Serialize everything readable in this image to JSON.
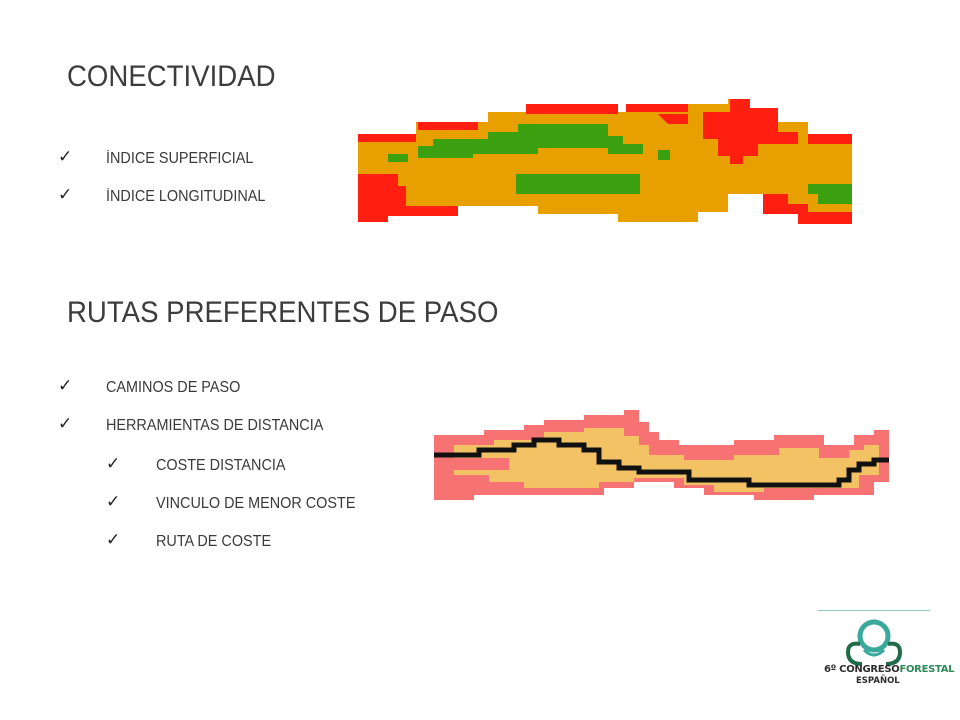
{
  "section1": {
    "title": "CONECTIVIDAD",
    "items": [
      "ÍNDICE SUPERFICIAL",
      "ÍNDICE LONGITUDINAL"
    ]
  },
  "section2": {
    "title": "RUTAS PREFERENTES DE PASO",
    "items": [
      "CAMINOS DE PASO",
      "HERRAMIENTAS DE DISTANCIA"
    ],
    "subitems": [
      "COSTE DISTANCIA",
      "VINCULO DE MENOR COSTE",
      "RUTA DE COSTE"
    ]
  },
  "logo": {
    "line1_prefix": "6º CONGRESO",
    "line1_accent": "FORESTAL",
    "line2": "ESPAÑOL"
  },
  "colors": {
    "red": "#ff1f10",
    "orange": "#e8a000",
    "green": "#3aa010",
    "salmon": "#f77272",
    "sand": "#f2c264",
    "path": "#111111",
    "logo_teal": "#3aa89a"
  },
  "icons": {
    "bullet": "check-icon"
  }
}
